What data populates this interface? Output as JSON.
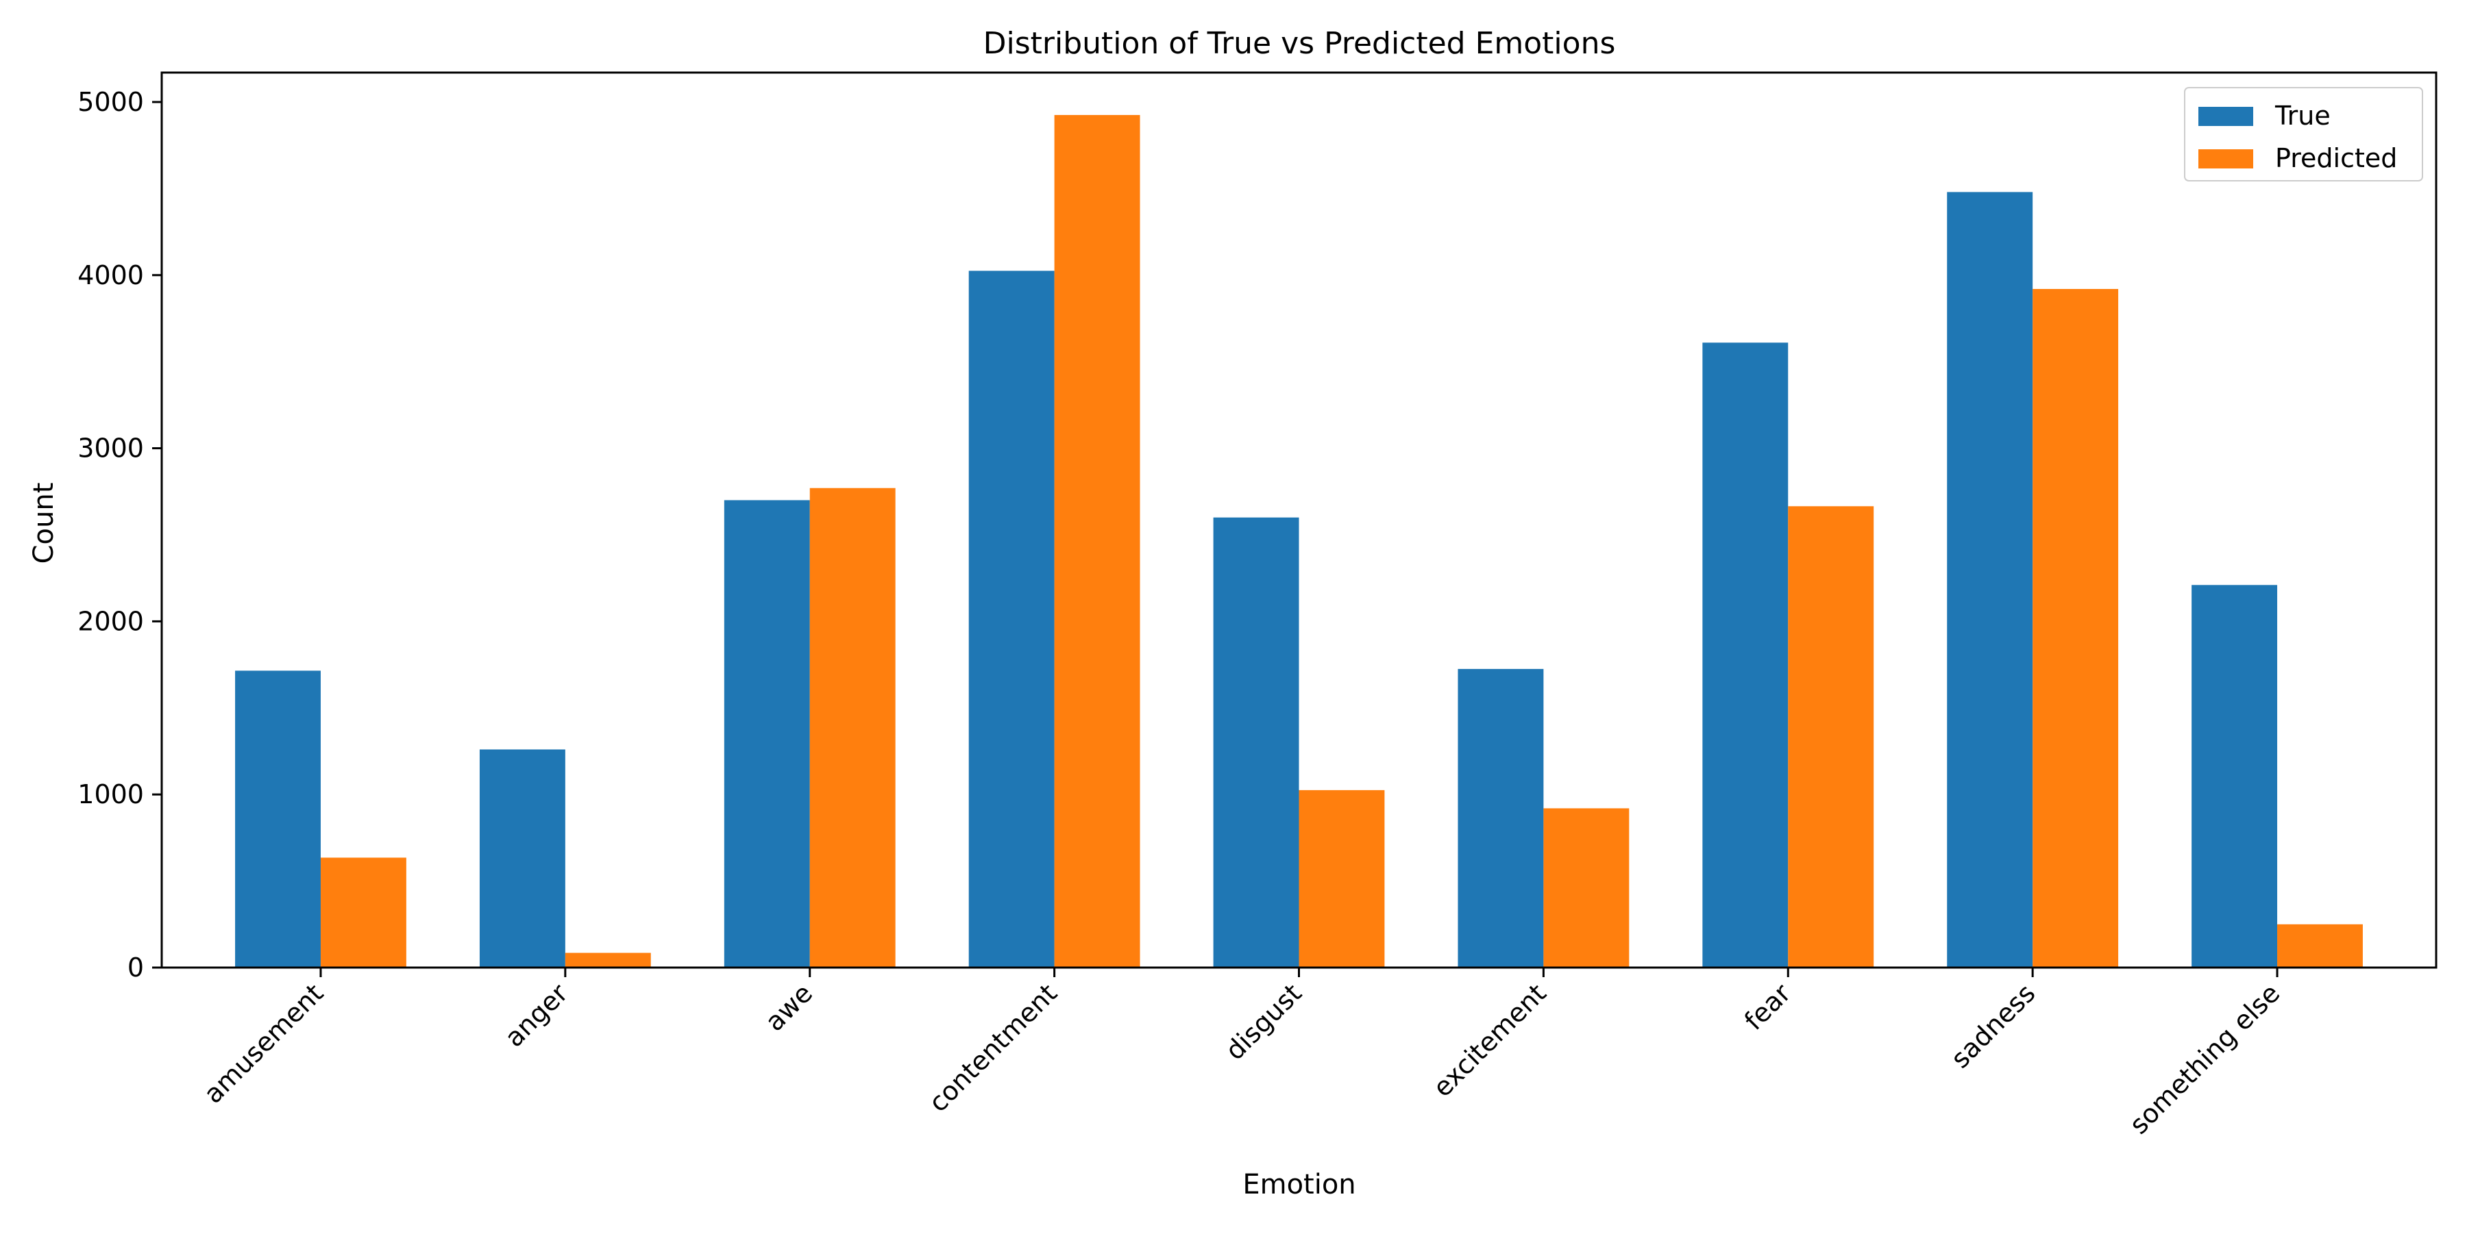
{
  "chart_data": {
    "type": "bar",
    "title": "Distribution of True vs Predicted Emotions",
    "xlabel": "Emotion",
    "ylabel": "Count",
    "categories": [
      "amusement",
      "anger",
      "awe",
      "contentment",
      "disgust",
      "excitement",
      "fear",
      "sadness",
      "something else"
    ],
    "series": [
      {
        "name": "True",
        "color": "#1f77b4",
        "values": [
          1715,
          1260,
          2700,
          4025,
          2600,
          1725,
          3610,
          4480,
          2210
        ]
      },
      {
        "name": "Predicted",
        "color": "#ff7f0e",
        "values": [
          635,
          85,
          2770,
          4925,
          1025,
          920,
          2665,
          3920,
          250
        ]
      }
    ],
    "ylim": [
      0,
      5170
    ],
    "yticks": [
      0,
      1000,
      2000,
      3000,
      4000,
      5000
    ],
    "grid": false,
    "legend_position": "top-right"
  }
}
